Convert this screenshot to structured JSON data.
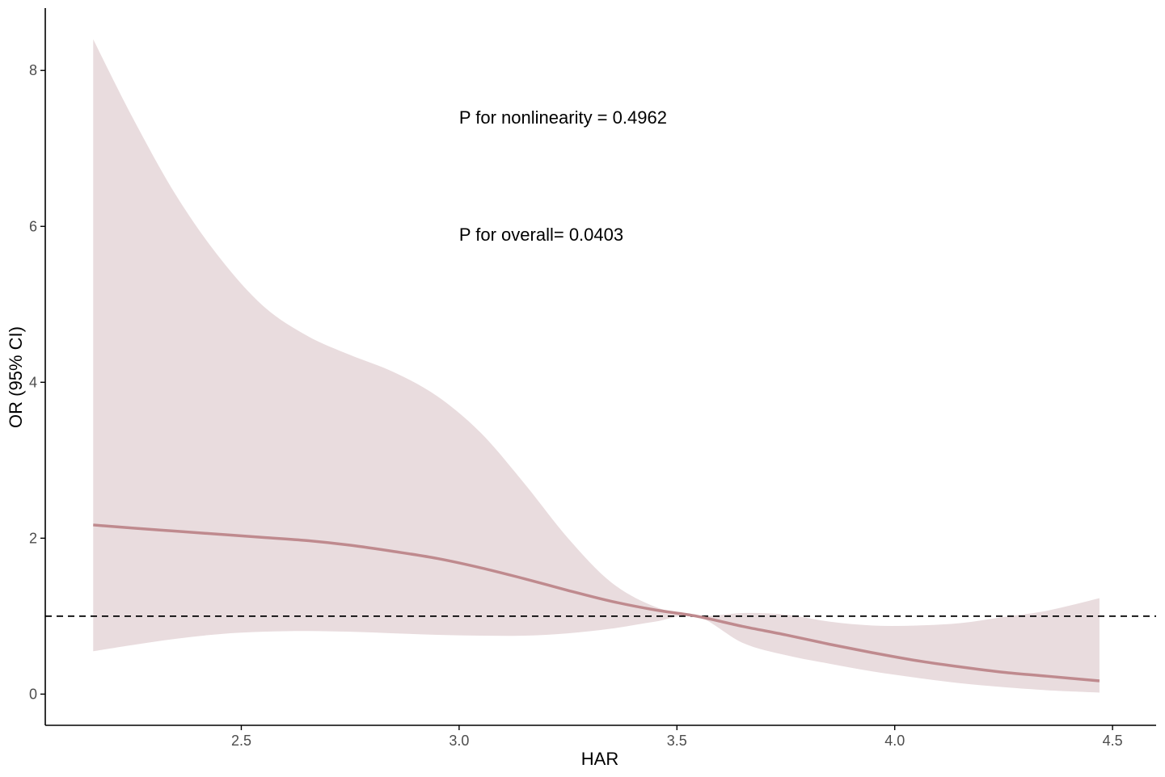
{
  "chart_data": {
    "type": "area",
    "title": "",
    "xlabel": "HAR",
    "ylabel": "OR (95% CI)",
    "xlim": [
      2.05,
      4.6
    ],
    "ylim": [
      -0.4,
      8.8
    ],
    "x_ticks": [
      2.5,
      3.0,
      3.5,
      4.0,
      4.5
    ],
    "x_tick_labels": [
      "2.5",
      "3.0",
      "3.5",
      "4.0",
      "4.5"
    ],
    "y_ticks": [
      0,
      2,
      4,
      6,
      8
    ],
    "y_tick_labels": [
      "0",
      "2",
      "4",
      "6",
      "8"
    ],
    "grid": false,
    "legend": "none",
    "reference_line": {
      "y": 1,
      "style": "dashed",
      "color": "#000000"
    },
    "series": [
      {
        "x": [
          2.16,
          2.25,
          2.35,
          2.45,
          2.55,
          2.65,
          2.75,
          2.85,
          2.95,
          3.05,
          3.15,
          3.25,
          3.35,
          3.45,
          3.545,
          3.65,
          3.75,
          3.85,
          3.95,
          4.05,
          4.15,
          4.25,
          4.35,
          4.47
        ],
        "y": [
          2.17,
          2.13,
          2.09,
          2.05,
          2.01,
          1.97,
          1.91,
          1.83,
          1.74,
          1.62,
          1.48,
          1.33,
          1.19,
          1.08,
          1.0,
          0.87,
          0.76,
          0.64,
          0.53,
          0.43,
          0.35,
          0.28,
          0.23,
          0.17
        ],
        "lower": [
          0.55,
          0.63,
          0.71,
          0.77,
          0.8,
          0.81,
          0.8,
          0.78,
          0.76,
          0.75,
          0.75,
          0.78,
          0.84,
          0.93,
          1.0,
          0.66,
          0.5,
          0.39,
          0.29,
          0.21,
          0.14,
          0.09,
          0.05,
          0.02
        ],
        "upper": [
          8.4,
          7.4,
          6.4,
          5.6,
          4.98,
          4.6,
          4.35,
          4.13,
          3.82,
          3.35,
          2.7,
          2.0,
          1.43,
          1.12,
          1.0,
          1.04,
          1.02,
          0.93,
          0.88,
          0.88,
          0.91,
          0.99,
          1.07,
          1.23
        ]
      }
    ],
    "colors": {
      "band": "#e9dcde",
      "line": "#bf8a8e",
      "axis": "#000000"
    },
    "annotations": [
      {
        "text": "P for nonlinearity = 0.4962",
        "x": 3.0,
        "y": 7.4
      },
      {
        "text": "P for overall= 0.0403",
        "x": 3.0,
        "y": 5.9
      }
    ]
  }
}
